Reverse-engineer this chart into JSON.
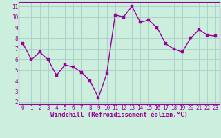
{
  "x": [
    0,
    1,
    2,
    3,
    4,
    5,
    6,
    7,
    8,
    9,
    10,
    11,
    12,
    13,
    14,
    15,
    16,
    17,
    18,
    19,
    20,
    21,
    22,
    23
  ],
  "y": [
    7.5,
    6.0,
    6.7,
    6.0,
    4.5,
    5.5,
    5.3,
    4.8,
    4.0,
    2.4,
    4.7,
    10.2,
    10.0,
    11.0,
    9.5,
    9.7,
    9.0,
    7.5,
    7.0,
    6.7,
    8.0,
    8.8,
    8.3,
    8.2
  ],
  "line_color": "#990099",
  "marker_color": "#990099",
  "bg_color": "#cceedd",
  "grid_color": "#aacccc",
  "xlabel": "Windchill (Refroidissement éolien,°C)",
  "ylim_min": 1.8,
  "ylim_max": 11.4,
  "xlim_min": -0.5,
  "xlim_max": 23.5,
  "yticks": [
    2,
    3,
    4,
    5,
    6,
    7,
    8,
    9,
    10,
    11
  ],
  "xticks": [
    0,
    1,
    2,
    3,
    4,
    5,
    6,
    7,
    8,
    9,
    10,
    11,
    12,
    13,
    14,
    15,
    16,
    17,
    18,
    19,
    20,
    21,
    22,
    23
  ],
  "marker_size": 2.5,
  "line_width": 1.0,
  "tick_fontsize": 5.5,
  "xlabel_fontsize": 6.5
}
